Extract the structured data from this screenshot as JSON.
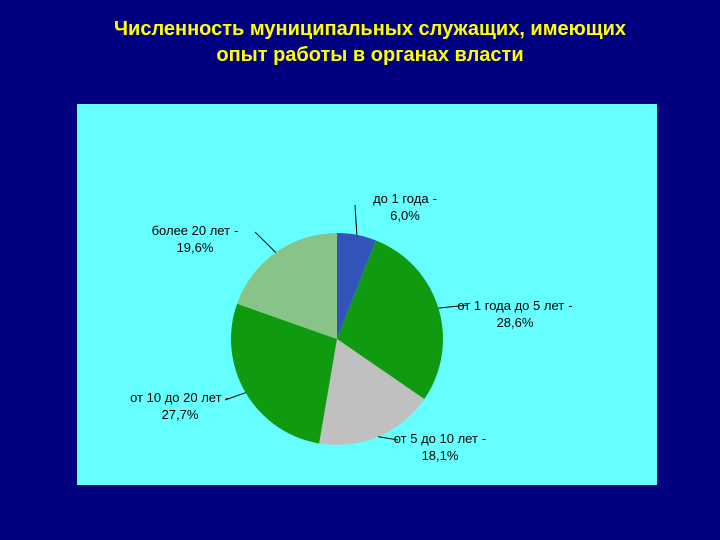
{
  "chart_data": {
    "type": "pie",
    "title": "Численность муниципальных служащих, имеющих опыт работы в органах власти",
    "categories": [
      "до 1 года",
      "от 1 года до 5 лет",
      "от 5 до 10 лет",
      "от 10 до 20 лет",
      "более 20 лет"
    ],
    "values": [
      6.0,
      28.6,
      18.1,
      27.7,
      19.6
    ],
    "value_labels": [
      "6,0%",
      "28,6%",
      "18,1%",
      "27,7%",
      "19,6%"
    ],
    "label_separator": "-",
    "colors": [
      "#3355bb",
      "#109a10",
      "#c0c0c0",
      "#109a10",
      "#88c488"
    ]
  }
}
